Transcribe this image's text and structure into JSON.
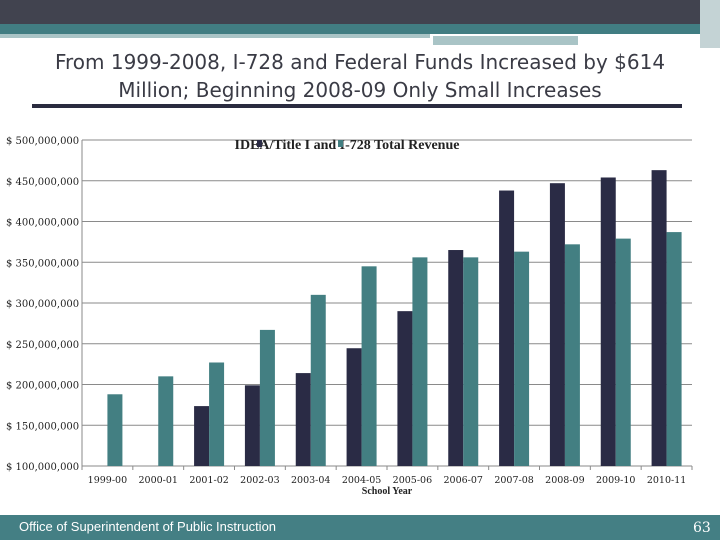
{
  "slide": {
    "title": "From 1999-2008, I-728 and Federal Funds Increased by $614 Million; Beginning 2008-09 Only Small Increases",
    "footer": "Office of Superintendent of Public Instruction",
    "page_number": "63"
  },
  "colors": {
    "dark_series": "#2a2b45",
    "teal_series": "#437f82",
    "header": "#41434f",
    "footer": "#447f84"
  },
  "chart_data": {
    "type": "bar",
    "title": "IDEA/Title I and I-728 Total Revenue",
    "xlabel": "School Year",
    "ylabel": "",
    "ylim": [
      100000000,
      500000000
    ],
    "yticks": [
      100000000,
      150000000,
      200000000,
      250000000,
      300000000,
      350000000,
      400000000,
      450000000,
      500000000
    ],
    "ytick_labels": [
      "$ 100,000,000",
      "$ 150,000,000",
      "$ 200,000,000",
      "$ 250,000,000",
      "$ 300,000,000",
      "$ 350,000,000",
      "$ 400,000,000",
      "$ 450,000,000",
      "$ 500,000,000"
    ],
    "grid": true,
    "legend": "top",
    "categories": [
      "1999-00",
      "2000-01",
      "2001-02",
      "2002-03",
      "2003-04",
      "2004-05",
      "2005-06",
      "2006-07",
      "2007-08",
      "2008-09",
      "2009-10",
      "2010-11"
    ],
    "series": [
      {
        "color": "#2a2b45",
        "values": [
          null,
          null,
          173500000,
          199000000,
          214000000,
          244500000,
          290000000,
          365000000,
          438000000,
          447000000,
          454000000,
          463000000
        ]
      },
      {
        "color": "#437f82",
        "values": [
          188000000,
          210000000,
          227000000,
          267000000,
          310000000,
          345000000,
          356000000,
          356000000,
          363000000,
          372000000,
          379000000,
          387000000
        ]
      }
    ]
  }
}
